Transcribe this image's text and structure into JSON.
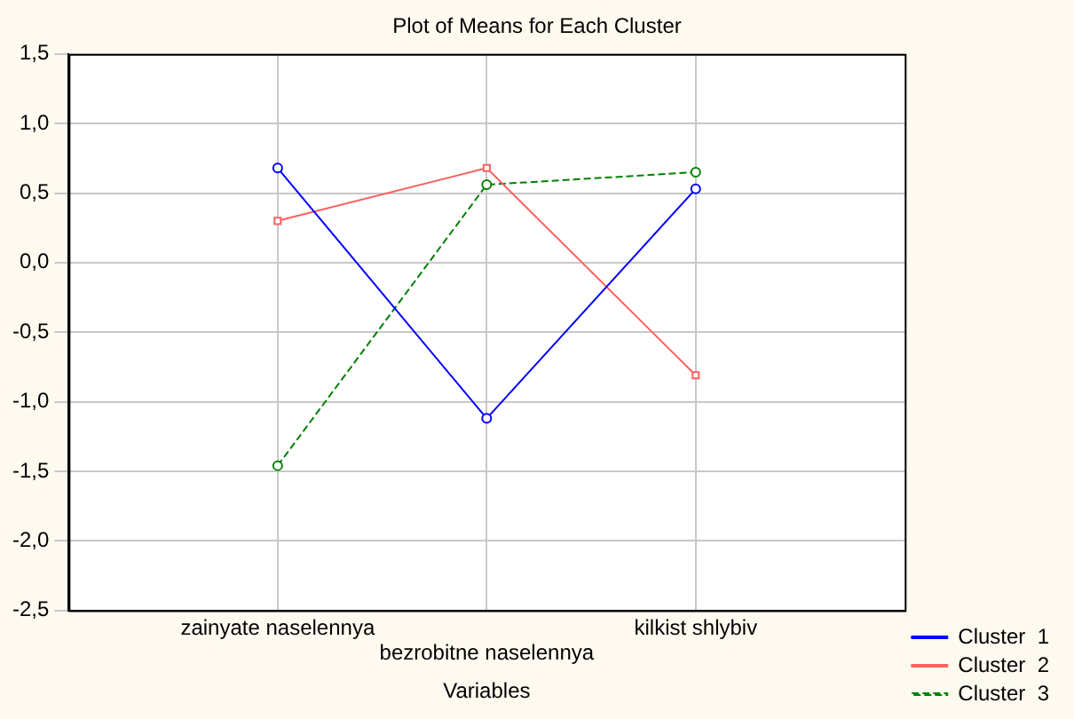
{
  "chart_data": {
    "type": "line",
    "title": "Plot of Means for Each Cluster",
    "xlabel": "Variables",
    "categories": [
      "zainyate naselennya",
      "bezrobitne naselennya",
      "kilkist shlybiv"
    ],
    "series": [
      {
        "name": "Cluster  1",
        "color": "#0000ff",
        "values": [
          0.68,
          -1.12,
          0.53
        ],
        "marker": "circle",
        "line_style": "solid"
      },
      {
        "name": "Cluster  2",
        "color": "#ff6060",
        "values": [
          0.3,
          0.68,
          -0.81
        ],
        "marker": "square",
        "line_style": "solid"
      },
      {
        "name": "Cluster  3",
        "color": "#008000",
        "values": [
          -1.46,
          0.56,
          0.65
        ],
        "marker": "circle",
        "line_style": "dashed"
      }
    ],
    "ylim": [
      -2.5,
      1.5
    ],
    "yticks": [
      {
        "value": -2.5,
        "label": "-2,5"
      },
      {
        "value": -2,
        "label": "-2,0"
      },
      {
        "value": -1.5,
        "label": "-1,5"
      },
      {
        "value": -1,
        "label": "-1,0"
      },
      {
        "value": -0.5,
        "label": "-0,5"
      },
      {
        "value": 0,
        "label": "0,0"
      },
      {
        "value": 0.5,
        "label": "0,5"
      },
      {
        "value": 1,
        "label": "1,0"
      },
      {
        "value": 1.5,
        "label": "1,5"
      }
    ],
    "grid": true,
    "legend": "bottom right"
  }
}
